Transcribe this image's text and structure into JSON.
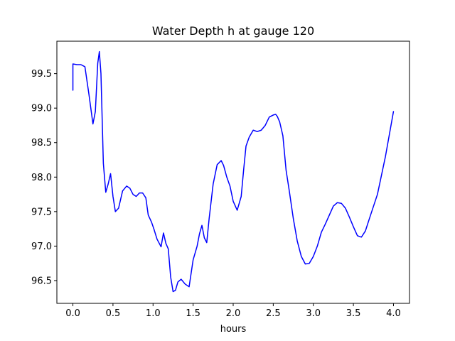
{
  "chart_data": {
    "type": "line",
    "title": "Water Depth h at gauge 120",
    "xlabel": "hours",
    "ylabel": "",
    "xlim": [
      -0.2,
      4.2
    ],
    "ylim": [
      96.17,
      99.97
    ],
    "xticks": [
      0.0,
      0.5,
      1.0,
      1.5,
      2.0,
      2.5,
      3.0,
      3.5,
      4.0
    ],
    "xtick_labels": [
      "0.0",
      "0.5",
      "1.0",
      "1.5",
      "2.0",
      "2.5",
      "3.0",
      "3.5",
      "4.0"
    ],
    "yticks": [
      96.5,
      97.0,
      97.5,
      98.0,
      98.5,
      99.0,
      99.5
    ],
    "ytick_labels": [
      "96.5",
      "97.0",
      "97.5",
      "98.0",
      "98.5",
      "99.0",
      "99.5"
    ],
    "grid": false,
    "legend": "none",
    "series": [
      {
        "color": "#0000ff",
        "x": [
          0.0,
          0.0,
          0.05,
          0.1,
          0.15,
          0.2,
          0.25,
          0.28,
          0.31,
          0.33,
          0.35,
          0.38,
          0.41,
          0.44,
          0.47,
          0.5,
          0.53,
          0.57,
          0.62,
          0.67,
          0.71,
          0.75,
          0.79,
          0.83,
          0.87,
          0.91,
          0.94,
          0.98,
          1.01,
          1.05,
          1.1,
          1.13,
          1.16,
          1.19,
          1.22,
          1.25,
          1.28,
          1.31,
          1.35,
          1.4,
          1.45,
          1.5,
          1.55,
          1.58,
          1.61,
          1.64,
          1.67,
          1.7,
          1.75,
          1.8,
          1.85,
          1.88,
          1.92,
          1.96,
          2.0,
          2.05,
          2.1,
          2.13,
          2.16,
          2.2,
          2.25,
          2.3,
          2.35,
          2.4,
          2.45,
          2.5,
          2.53,
          2.55,
          2.58,
          2.62,
          2.66,
          2.7,
          2.75,
          2.8,
          2.85,
          2.9,
          2.95,
          3.0,
          3.05,
          3.1,
          3.15,
          3.2,
          3.25,
          3.3,
          3.35,
          3.4,
          3.45,
          3.5,
          3.55,
          3.6,
          3.65,
          3.7,
          3.8,
          3.9,
          4.0
        ],
        "values": [
          99.26,
          99.64,
          99.63,
          99.63,
          99.6,
          99.2,
          98.77,
          98.95,
          99.65,
          99.82,
          99.5,
          98.2,
          97.78,
          97.9,
          98.05,
          97.72,
          97.5,
          97.55,
          97.8,
          97.87,
          97.84,
          97.75,
          97.72,
          97.77,
          97.77,
          97.7,
          97.45,
          97.35,
          97.25,
          97.1,
          96.99,
          97.19,
          97.04,
          96.96,
          96.55,
          96.34,
          96.36,
          96.48,
          96.52,
          96.45,
          96.41,
          96.8,
          97.0,
          97.18,
          97.3,
          97.12,
          97.05,
          97.4,
          97.9,
          98.18,
          98.24,
          98.17,
          98.0,
          97.87,
          97.65,
          97.52,
          97.72,
          98.1,
          98.45,
          98.58,
          98.68,
          98.66,
          98.68,
          98.75,
          98.87,
          98.9,
          98.91,
          98.88,
          98.8,
          98.6,
          98.1,
          97.8,
          97.4,
          97.07,
          96.85,
          96.74,
          96.75,
          96.85,
          97.0,
          97.2,
          97.32,
          97.45,
          97.58,
          97.63,
          97.62,
          97.55,
          97.42,
          97.28,
          97.15,
          97.13,
          97.22,
          97.4,
          97.75,
          98.3,
          98.95
        ]
      }
    ]
  }
}
